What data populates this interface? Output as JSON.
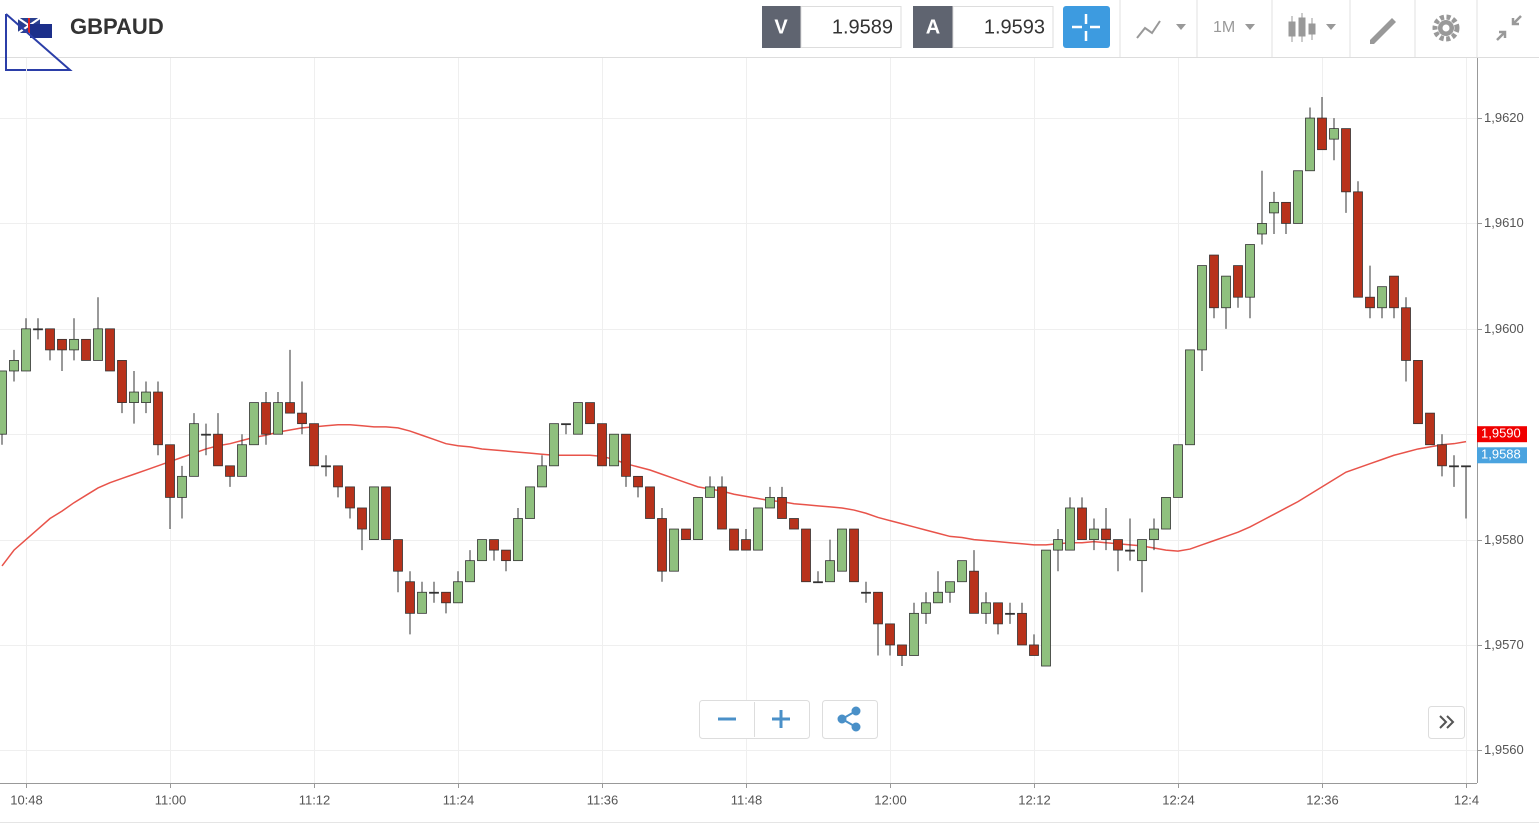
{
  "toolbar": {
    "symbol": "GBPAUD",
    "bid_label": "V",
    "bid": 1.9589,
    "ask_label": "A",
    "ask": 1.9593,
    "timeframe": "1M"
  },
  "chart_data": {
    "type": "candlestick",
    "categories": [
      null,
      null,
      "10:48",
      null,
      null,
      null,
      null,
      null,
      null,
      null,
      null,
      null,
      null,
      null,
      "11:00",
      null,
      null,
      null,
      null,
      null,
      null,
      null,
      null,
      null,
      null,
      null,
      "11:12",
      null,
      null,
      null,
      null,
      null,
      null,
      null,
      null,
      null,
      null,
      null,
      "11:24",
      null,
      null,
      null,
      null,
      null,
      null,
      null,
      null,
      null,
      null,
      null,
      "11:36",
      null,
      null,
      null,
      null,
      null,
      null,
      null,
      null,
      null,
      null,
      null,
      "11:48",
      null,
      null,
      null,
      null,
      null,
      null,
      null,
      null,
      null,
      null,
      null,
      "12:00",
      null,
      null,
      null,
      null,
      null,
      null,
      null,
      null,
      null,
      null,
      null,
      "12:12",
      null,
      null,
      null,
      null,
      null,
      null,
      null,
      null,
      null,
      null,
      null,
      "12:24",
      null,
      null,
      null,
      null,
      null,
      null,
      null,
      null,
      null,
      null,
      null,
      "12:36",
      null,
      null,
      null,
      null,
      null,
      null,
      null,
      null,
      null,
      null,
      null,
      "12:4"
    ],
    "open": [
      1.959,
      1.9596,
      1.9596,
      1.96,
      1.96,
      1.9599,
      1.9598,
      1.9599,
      1.9597,
      1.96,
      1.9597,
      1.9593,
      1.9593,
      1.9594,
      1.9589,
      1.9584,
      1.9586,
      1.959,
      1.959,
      1.9587,
      1.9586,
      1.9589,
      1.9593,
      1.959,
      1.9593,
      1.9592,
      1.9591,
      1.9587,
      1.9587,
      1.9585,
      1.9583,
      1.958,
      1.9585,
      1.958,
      1.9576,
      1.9573,
      1.9575,
      1.9575,
      1.9574,
      1.9576,
      1.9578,
      1.958,
      1.9579,
      1.9578,
      1.9582,
      1.9585,
      1.9587,
      1.9591,
      1.959,
      1.9593,
      1.9591,
      1.9587,
      1.959,
      1.9586,
      1.9585,
      1.9582,
      1.9577,
      1.9581,
      1.958,
      1.9584,
      1.9585,
      1.9581,
      1.958,
      1.9579,
      1.9583,
      1.9584,
      1.9582,
      1.9581,
      1.9576,
      1.9576,
      1.9577,
      1.9581,
      1.9575,
      1.9575,
      1.9572,
      1.957,
      1.9569,
      1.9573,
      1.9574,
      1.9575,
      1.9576,
      1.9577,
      1.9573,
      1.9574,
      1.9573,
      1.9573,
      1.957,
      1.9568,
      1.9579,
      1.9579,
      1.9583,
      1.958,
      1.9581,
      1.958,
      1.9579,
      1.9578,
      1.958,
      1.9581,
      1.9584,
      1.9589,
      1.9598,
      1.9607,
      1.9602,
      1.9606,
      1.9603,
      1.9609,
      1.9611,
      1.9612,
      1.961,
      1.9615,
      1.962,
      1.9618,
      1.9619,
      1.9613,
      1.9603,
      1.9602,
      1.9605,
      1.9602,
      1.9597,
      1.9592,
      1.9589,
      1.9587,
      1.9587
    ],
    "high": [
      1.9596,
      1.9598,
      1.9601,
      1.9601,
      1.96,
      1.9599,
      1.9601,
      1.9599,
      1.9603,
      1.96,
      1.9597,
      1.9596,
      1.9595,
      1.9595,
      1.9589,
      1.9587,
      1.9592,
      1.9591,
      1.9592,
      1.9587,
      1.959,
      1.9593,
      1.9594,
      1.9594,
      1.9598,
      1.9595,
      1.9591,
      1.9588,
      1.9587,
      1.9585,
      1.9583,
      1.9585,
      1.9585,
      1.958,
      1.9577,
      1.9576,
      1.9576,
      1.9575,
      1.9577,
      1.9579,
      1.958,
      1.958,
      1.9579,
      1.9583,
      1.9585,
      1.9588,
      1.9591,
      1.9591,
      1.9593,
      1.9593,
      1.9591,
      1.959,
      1.959,
      1.9586,
      1.9585,
      1.9583,
      1.9581,
      1.9581,
      1.9584,
      1.9586,
      1.9586,
      1.9581,
      1.9581,
      1.9583,
      1.9585,
      1.9585,
      1.9582,
      1.9581,
      1.9577,
      1.958,
      1.9581,
      1.9581,
      1.9576,
      1.9575,
      1.9572,
      1.957,
      1.9574,
      1.9575,
      1.9577,
      1.9576,
      1.9578,
      1.9579,
      1.9575,
      1.9574,
      1.9574,
      1.9574,
      1.9571,
      1.9579,
      1.9581,
      1.9584,
      1.9584,
      1.9582,
      1.9583,
      1.958,
      1.9582,
      1.958,
      1.9582,
      1.9584,
      1.9589,
      1.9598,
      1.9606,
      1.9607,
      1.9605,
      1.9606,
      1.9608,
      1.9615,
      1.9613,
      1.9612,
      1.9615,
      1.9621,
      1.9622,
      1.962,
      1.9619,
      1.9614,
      1.9606,
      1.9604,
      1.9605,
      1.9603,
      1.9597,
      1.9592,
      1.959,
      1.9588,
      1.9587
    ],
    "low": [
      1.9589,
      1.9595,
      1.9596,
      1.9599,
      1.9597,
      1.9596,
      1.9597,
      1.9597,
      1.9597,
      1.9596,
      1.9592,
      1.9591,
      1.9592,
      1.9588,
      1.9581,
      1.9582,
      1.9586,
      1.9588,
      1.9587,
      1.9585,
      1.9586,
      1.9589,
      1.9589,
      1.959,
      1.9592,
      1.959,
      1.9587,
      1.9586,
      1.9584,
      1.9582,
      1.9579,
      1.958,
      1.958,
      1.9575,
      1.9571,
      1.9573,
      1.9574,
      1.9573,
      1.9574,
      1.9576,
      1.9578,
      1.9578,
      1.9577,
      1.9578,
      1.9582,
      1.9585,
      1.9587,
      1.959,
      1.959,
      1.9591,
      1.9587,
      1.9587,
      1.9585,
      1.9584,
      1.9582,
      1.9576,
      1.9577,
      1.958,
      1.958,
      1.9584,
      1.9581,
      1.9579,
      1.9579,
      1.9579,
      1.9583,
      1.9582,
      1.9581,
      1.9576,
      1.9576,
      1.9576,
      1.9577,
      1.9576,
      1.9574,
      1.9569,
      1.9569,
      1.9568,
      1.9569,
      1.9572,
      1.9574,
      1.9574,
      1.9576,
      1.9573,
      1.9572,
      1.9571,
      1.9572,
      1.957,
      1.9569,
      1.9568,
      1.9577,
      1.9579,
      1.958,
      1.9579,
      1.9579,
      1.9577,
      1.9578,
      1.9575,
      1.9579,
      1.9581,
      1.9584,
      1.9589,
      1.9596,
      1.9601,
      1.96,
      1.9602,
      1.9601,
      1.9608,
      1.9609,
      1.9609,
      1.961,
      1.9615,
      1.9617,
      1.9616,
      1.9611,
      1.9603,
      1.9601,
      1.9601,
      1.9601,
      1.9595,
      1.9591,
      1.9589,
      1.9586,
      1.9585,
      1.9582
    ],
    "close": [
      1.9596,
      1.9597,
      1.96,
      1.96,
      1.9598,
      1.9598,
      1.9599,
      1.9597,
      1.96,
      1.9596,
      1.9593,
      1.9594,
      1.9594,
      1.9589,
      1.9584,
      1.9586,
      1.9591,
      1.959,
      1.9587,
      1.9586,
      1.9589,
      1.9593,
      1.959,
      1.9593,
      1.9592,
      1.9591,
      1.9587,
      1.9587,
      1.9585,
      1.9583,
      1.9581,
      1.9585,
      1.958,
      1.9577,
      1.9573,
      1.9575,
      1.9575,
      1.9574,
      1.9576,
      1.9578,
      1.958,
      1.9579,
      1.9578,
      1.9582,
      1.9585,
      1.9587,
      1.9591,
      1.9591,
      1.9593,
      1.9591,
      1.9587,
      1.959,
      1.9586,
      1.9585,
      1.9582,
      1.9577,
      1.9581,
      1.958,
      1.9584,
      1.9585,
      1.9581,
      1.9579,
      1.9579,
      1.9583,
      1.9584,
      1.9582,
      1.9581,
      1.9576,
      1.9576,
      1.9578,
      1.9581,
      1.9576,
      1.9575,
      1.9572,
      1.957,
      1.9569,
      1.9573,
      1.9574,
      1.9575,
      1.9576,
      1.9578,
      1.9573,
      1.9574,
      1.9572,
      1.9573,
      1.957,
      1.9569,
      1.9579,
      1.958,
      1.9583,
      1.958,
      1.9581,
      1.958,
      1.9579,
      1.9579,
      1.958,
      1.9581,
      1.9584,
      1.9589,
      1.9598,
      1.9606,
      1.9602,
      1.9605,
      1.9603,
      1.9608,
      1.961,
      1.9612,
      1.961,
      1.9615,
      1.962,
      1.9617,
      1.9619,
      1.9613,
      1.9603,
      1.9602,
      1.9604,
      1.9602,
      1.9597,
      1.9591,
      1.9589,
      1.9587,
      1.9587,
      1.9587
    ],
    "up_color": "#8fc07e",
    "down_color": "#b8321b",
    "ma": {
      "color": "#e8534a",
      "values": [
        1.95775,
        1.9579,
        1.958,
        1.9581,
        1.9582,
        1.95827,
        1.95835,
        1.95842,
        1.95849,
        1.95854,
        1.95858,
        1.95862,
        1.95866,
        1.9587,
        1.95874,
        1.95878,
        1.95882,
        1.95886,
        1.95889,
        1.95891,
        1.95894,
        1.95897,
        1.95899,
        1.95902,
        1.95904,
        1.95906,
        1.95907,
        1.95908,
        1.95909,
        1.95909,
        1.95908,
        1.95907,
        1.95907,
        1.95906,
        1.95903,
        1.95899,
        1.95895,
        1.95891,
        1.95889,
        1.95888,
        1.95886,
        1.95885,
        1.95884,
        1.95883,
        1.95882,
        1.95881,
        1.9588,
        1.9588,
        1.9588,
        1.9588,
        1.95879,
        1.95876,
        1.95872,
        1.95869,
        1.95866,
        1.95862,
        1.95858,
        1.95854,
        1.9585,
        1.95848,
        1.95846,
        1.95843,
        1.95841,
        1.95839,
        1.95837,
        1.95836,
        1.95834,
        1.95833,
        1.95832,
        1.95831,
        1.9583,
        1.95828,
        1.95825,
        1.95821,
        1.95818,
        1.95815,
        1.95812,
        1.95809,
        1.95806,
        1.95803,
        1.95802,
        1.958,
        1.95799,
        1.95798,
        1.95797,
        1.95796,
        1.95795,
        1.95795,
        1.95796,
        1.95797,
        1.95797,
        1.95798,
        1.95797,
        1.95796,
        1.95795,
        1.95794,
        1.95792,
        1.9579,
        1.95789,
        1.95791,
        1.95795,
        1.95799,
        1.95803,
        1.95807,
        1.95812,
        1.95818,
        1.95824,
        1.9583,
        1.95836,
        1.95843,
        1.9585,
        1.95857,
        1.95864,
        1.95868,
        1.95872,
        1.95876,
        1.9588,
        1.95883,
        1.95886,
        1.95888,
        1.9589,
        1.95891,
        1.95893
      ]
    },
    "ylim": [
      1.95569,
      1.96257
    ],
    "yticks": [
      {
        "value": 1.956,
        "label": "1,9560"
      },
      {
        "value": 1.957,
        "label": "1,9570"
      },
      {
        "value": 1.958,
        "label": "1,9580"
      },
      {
        "value": 1.959,
        "label": "1,9590"
      },
      {
        "value": 1.96,
        "label": "1,9600"
      },
      {
        "value": 1.961,
        "label": "1,9610"
      },
      {
        "value": 1.962,
        "label": "1,9620"
      }
    ],
    "grid": true,
    "price_markers": [
      {
        "value": 1.959,
        "label": "1,9590",
        "color": "#f00000"
      },
      {
        "value": 1.9588,
        "label": "1,9588",
        "color": "#4aa3df"
      }
    ]
  }
}
